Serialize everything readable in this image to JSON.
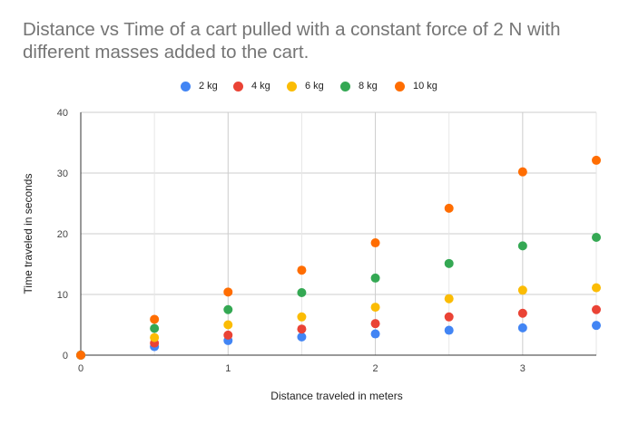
{
  "chart_data": {
    "type": "scatter",
    "title": "Distance vs Time of a cart pulled with a constant force of 2 N with different masses added to the cart.",
    "xlabel": "Distance traveled in meters",
    "ylabel": "Time traveled in seconds",
    "xlim": [
      0,
      3.5
    ],
    "ylim": [
      0,
      40
    ],
    "x_ticks": [
      0,
      1,
      2,
      3
    ],
    "x_minor_grid": [
      0.5,
      1.5,
      2.5,
      3.5
    ],
    "y_ticks": [
      0,
      10,
      20,
      30,
      40
    ],
    "legend_position": "top-center",
    "series": [
      {
        "name": "2 kg",
        "color": "#4285F4",
        "x": [
          0,
          0.5,
          1,
          1.5,
          2,
          2.5,
          3,
          3.5
        ],
        "y": [
          0,
          1.4,
          2.4,
          3.0,
          3.5,
          4.1,
          4.5,
          4.9
        ]
      },
      {
        "name": "4 kg",
        "color": "#EA4335",
        "x": [
          0,
          0.5,
          1,
          1.5,
          2,
          2.5,
          3,
          3.5
        ],
        "y": [
          0,
          2.0,
          3.3,
          4.3,
          5.2,
          6.3,
          6.9,
          7.5
        ]
      },
      {
        "name": "6 kg",
        "color": "#FBBC04",
        "x": [
          0,
          0.5,
          1,
          1.5,
          2,
          2.5,
          3,
          3.5
        ],
        "y": [
          0,
          2.9,
          5.0,
          6.3,
          7.9,
          9.3,
          10.7,
          11.1
        ]
      },
      {
        "name": "8 kg",
        "color": "#34A853",
        "x": [
          0,
          0.5,
          1,
          1.5,
          2,
          2.5,
          3,
          3.5
        ],
        "y": [
          0,
          4.4,
          7.5,
          10.3,
          12.7,
          15.1,
          18.0,
          19.4
        ]
      },
      {
        "name": "10 kg",
        "color": "#FF6D01",
        "x": [
          0,
          0.5,
          1,
          1.5,
          2,
          2.5,
          3,
          3.5
        ],
        "y": [
          0,
          5.9,
          10.4,
          14.0,
          18.5,
          24.2,
          30.2,
          32.1
        ]
      }
    ]
  }
}
